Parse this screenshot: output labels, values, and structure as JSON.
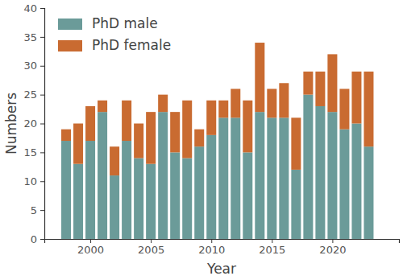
{
  "chart_data": {
    "type": "bar",
    "stacked": true,
    "x_label": "Year",
    "y_label": "Numbers",
    "legend": "upper left",
    "x": [
      1998,
      1999,
      2000,
      2001,
      2002,
      2003,
      2004,
      2005,
      2006,
      2007,
      2008,
      2009,
      2010,
      2011,
      2012,
      2013,
      2014,
      2015,
      2016,
      2017,
      2018,
      2019,
      2020,
      2021,
      2022,
      2023
    ],
    "series": [
      {
        "name": "PhD male",
        "color": "#6b9b99",
        "values": [
          17,
          13,
          17,
          22,
          11,
          17,
          14,
          13,
          22,
          15,
          14,
          16,
          18,
          21,
          21,
          15,
          22,
          21,
          21,
          12,
          25,
          23,
          22,
          19,
          20,
          16
        ]
      },
      {
        "name": "PhD female",
        "color": "#c96b31",
        "values": [
          2,
          7,
          6,
          2,
          5,
          7,
          6,
          9,
          3,
          7,
          10,
          3,
          6,
          3,
          5,
          9,
          12,
          5,
          6,
          9,
          4,
          6,
          10,
          7,
          9,
          13
        ]
      }
    ],
    "xlim": [
      1996.2,
      2025.5
    ],
    "xticks": [
      2000,
      2005,
      2010,
      2015,
      2020
    ],
    "ylim": [
      0,
      40
    ],
    "yticks": [
      0,
      5,
      10,
      15,
      20,
      25,
      30,
      35,
      40
    ]
  }
}
